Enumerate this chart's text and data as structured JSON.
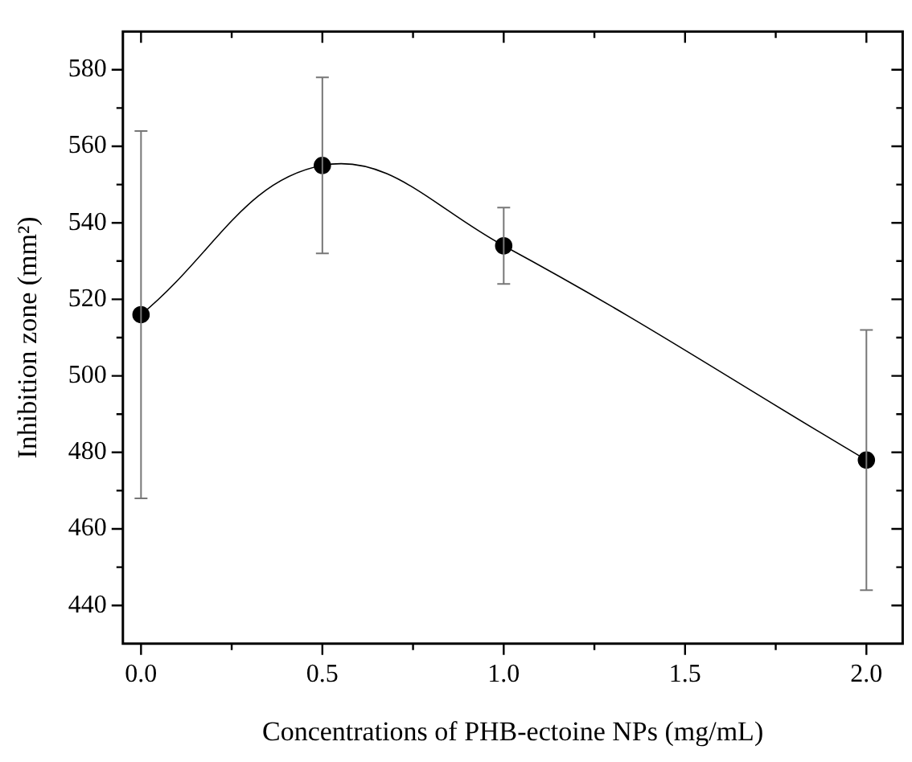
{
  "chart_data": {
    "type": "line",
    "xlabel": "Concentrations of PHB-ectoine NPs (mg/mL)",
    "ylabel": "Inhibition zone (mm²)",
    "x": [
      0,
      0.5,
      1.0,
      2.0
    ],
    "series": [
      {
        "color": "#000000",
        "values": [
          516,
          555,
          534,
          478
        ],
        "errors": [
          48,
          23,
          10,
          34
        ]
      }
    ],
    "xlim": [
      -0.05,
      2.1
    ],
    "xticks": [
      {
        "value": 0,
        "label": "0.0"
      },
      {
        "value": 0.25,
        "label": null
      },
      {
        "value": 0.5,
        "label": "0.5"
      },
      {
        "value": 0.75,
        "label": null
      },
      {
        "value": 1,
        "label": "1.0"
      },
      {
        "value": 1.25,
        "label": null
      },
      {
        "value": 1.5,
        "label": "1.5"
      },
      {
        "value": 1.75,
        "label": null
      },
      {
        "value": 2,
        "label": "2.0"
      }
    ],
    "ylim": [
      430,
      590
    ],
    "yticks": [
      440,
      {
        "value": 450,
        "label": null
      },
      460,
      {
        "value": 470,
        "label": null
      },
      480,
      {
        "value": 490,
        "label": null
      },
      500,
      {
        "value": 510,
        "label": null
      },
      520,
      {
        "value": 530,
        "label": null
      },
      540,
      {
        "value": 550,
        "label": null
      },
      560,
      {
        "value": 570,
        "label": null
      },
      580
    ],
    "grid": false,
    "legend": false,
    "marker": "circle",
    "line_style": "solid"
  }
}
